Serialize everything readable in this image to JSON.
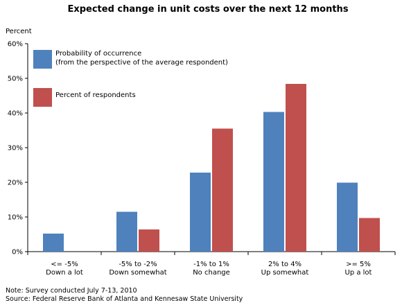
{
  "chart_data": {
    "type": "bar",
    "title": "Expected change in unit costs over the next 12 months",
    "ylabel": "Percent",
    "ylim": [
      0,
      60
    ],
    "yticks": [
      "0%",
      "10%",
      "20%",
      "30%",
      "40%",
      "50%",
      "60%"
    ],
    "categories": [
      [
        "<= -5%",
        "Down a lot"
      ],
      [
        "-5% to -2%",
        "Down somewhat"
      ],
      [
        "-1% to 1%",
        "No change"
      ],
      [
        "2% to 4%",
        "Up somewhat"
      ],
      [
        ">= 5%",
        "Up a lot"
      ]
    ],
    "series": [
      {
        "name": "Probability of occurrence (from the perspective of the average respondent)",
        "legend_lines": [
          "Probability of occurrence",
          "(from the perspective of the average respondent)"
        ],
        "color": "#4f81bd",
        "values": [
          5.2,
          11.5,
          22.8,
          40.3,
          19.9
        ]
      },
      {
        "name": "Percent of respondents",
        "legend_lines": [
          "Percent of respondents"
        ],
        "color": "#c0504d",
        "values": [
          null,
          6.4,
          35.5,
          48.4,
          9.7
        ]
      }
    ],
    "grid": false,
    "legend_position": "top-left"
  },
  "notes": [
    "Note: Survey conducted July 7-13, 2010",
    "Source: Federal Reserve Bank of Atlanta and Kennesaw State University"
  ]
}
